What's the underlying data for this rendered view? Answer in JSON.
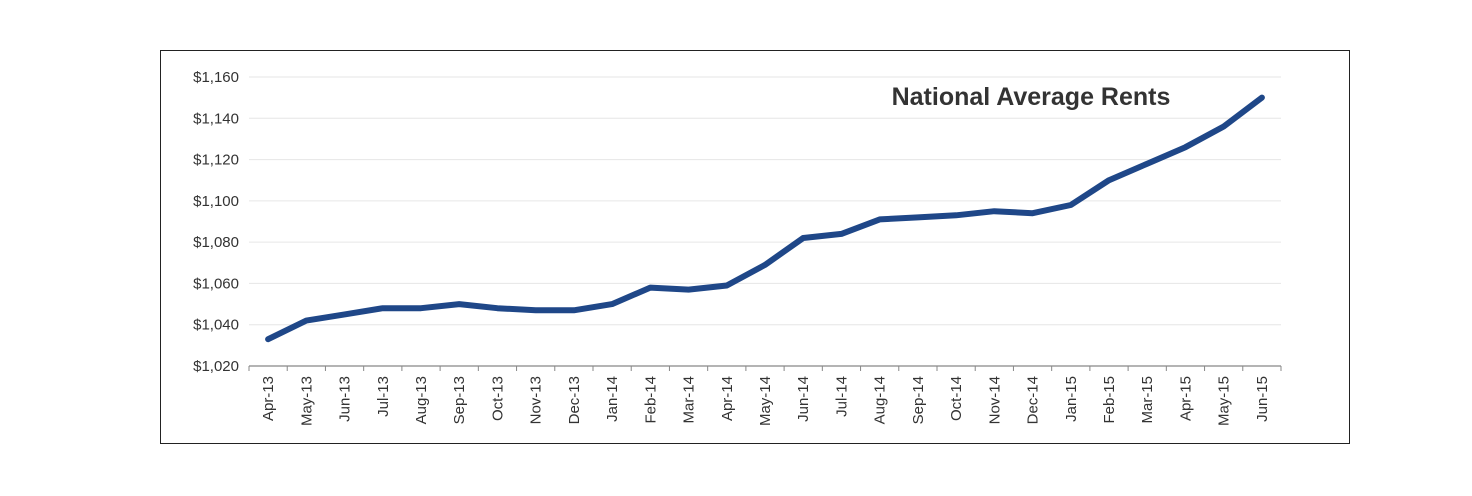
{
  "chart_data": {
    "type": "line",
    "title": "National Average Rents",
    "xlabel": "",
    "ylabel": "",
    "ylim": [
      1020,
      1160
    ],
    "yticks": [
      1020,
      1040,
      1060,
      1080,
      1100,
      1120,
      1140,
      1160
    ],
    "ytick_labels": [
      "$1,020",
      "$1,040",
      "$1,060",
      "$1,080",
      "$1,100",
      "$1,120",
      "$1,140",
      "$1,160"
    ],
    "grid": true,
    "legend": "none",
    "line_color": "#1f4788",
    "grid_color": "#e6e6e6",
    "categories": [
      "Apr-13",
      "May-13",
      "Jun-13",
      "Jul-13",
      "Aug-13",
      "Sep-13",
      "Oct-13",
      "Nov-13",
      "Dec-13",
      "Jan-14",
      "Feb-14",
      "Mar-14",
      "Apr-14",
      "May-14",
      "Jun-14",
      "Jul-14",
      "Aug-14",
      "Sep-14",
      "Oct-14",
      "Nov-14",
      "Dec-14",
      "Jan-15",
      "Feb-15",
      "Mar-15",
      "Apr-15",
      "May-15",
      "Jun-15"
    ],
    "series": [
      {
        "values": [
          1033,
          1042,
          1045,
          1048,
          1048,
          1050,
          1048,
          1047,
          1047,
          1050,
          1058,
          1057,
          1059,
          1069,
          1082,
          1084,
          1091,
          1092,
          1093,
          1095,
          1094,
          1098,
          1110,
          1118,
          1126,
          1136,
          1150
        ]
      }
    ]
  }
}
